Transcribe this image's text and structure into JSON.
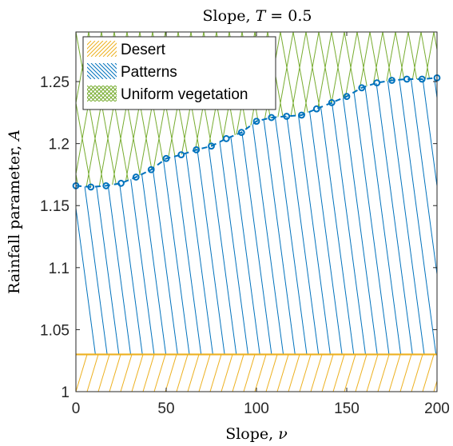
{
  "chart_data": {
    "type": "line",
    "title": "Slope, T = 0.5",
    "title_prefix": "Slope, ",
    "title_var": "T",
    "title_suffix": " = 0.5",
    "xlabel": "Slope, ν",
    "xlabel_prefix": "Slope, ",
    "xlabel_var": "ν",
    "ylabel": "Rainfall parameter, A",
    "ylabel_prefix": "Rainfall parameter, ",
    "ylabel_var": "A",
    "xlim": [
      0,
      200
    ],
    "ylim": [
      1.0,
      1.29
    ],
    "xticks": [
      0,
      50,
      100,
      150,
      200
    ],
    "xtick_labels": [
      "0",
      "50",
      "100",
      "150",
      "200"
    ],
    "yticks": [
      1.0,
      1.05,
      1.1,
      1.15,
      1.2,
      1.25
    ],
    "ytick_labels": [
      "1",
      "1.05",
      "1.1",
      "1.15",
      "1.2",
      "1.25"
    ],
    "grid": false,
    "legend_position": "top-left",
    "legend": [
      {
        "label": "Desert",
        "color": "#EDB120",
        "hatch": "desert"
      },
      {
        "label": "Patterns",
        "color": "#0072BD",
        "hatch": "patterns"
      },
      {
        "label": "Uniform vegetation",
        "color": "#77AC30",
        "hatch": "uniform"
      }
    ],
    "regions": [
      {
        "name": "Desert",
        "color": "#EDB120",
        "y_from": 1.0,
        "y_to": 1.03
      },
      {
        "name": "Patterns",
        "color": "#0072BD",
        "lower": 1.03,
        "upper": "boundary"
      },
      {
        "name": "Uniform vegetation",
        "color": "#77AC30",
        "lower": "boundary",
        "upper": 1.29
      }
    ],
    "series": [
      {
        "color": "#0072BD",
        "marker": "circle",
        "linestyle": "dashed",
        "x": [
          0,
          8.3,
          16.7,
          25,
          33.3,
          41.7,
          50,
          58.3,
          66.7,
          75,
          83.3,
          91.7,
          100,
          108.3,
          116.7,
          125,
          133.3,
          141.7,
          150,
          158.3,
          166.7,
          175,
          183.3,
          191.7,
          200
        ],
        "y": [
          1.166,
          1.165,
          1.166,
          1.168,
          1.173,
          1.179,
          1.188,
          1.191,
          1.195,
          1.198,
          1.204,
          1.209,
          1.218,
          1.221,
          1.222,
          1.223,
          1.228,
          1.233,
          1.238,
          1.245,
          1.249,
          1.251,
          1.252,
          1.252,
          1.253
        ]
      }
    ],
    "desert_boundary": 1.03
  }
}
